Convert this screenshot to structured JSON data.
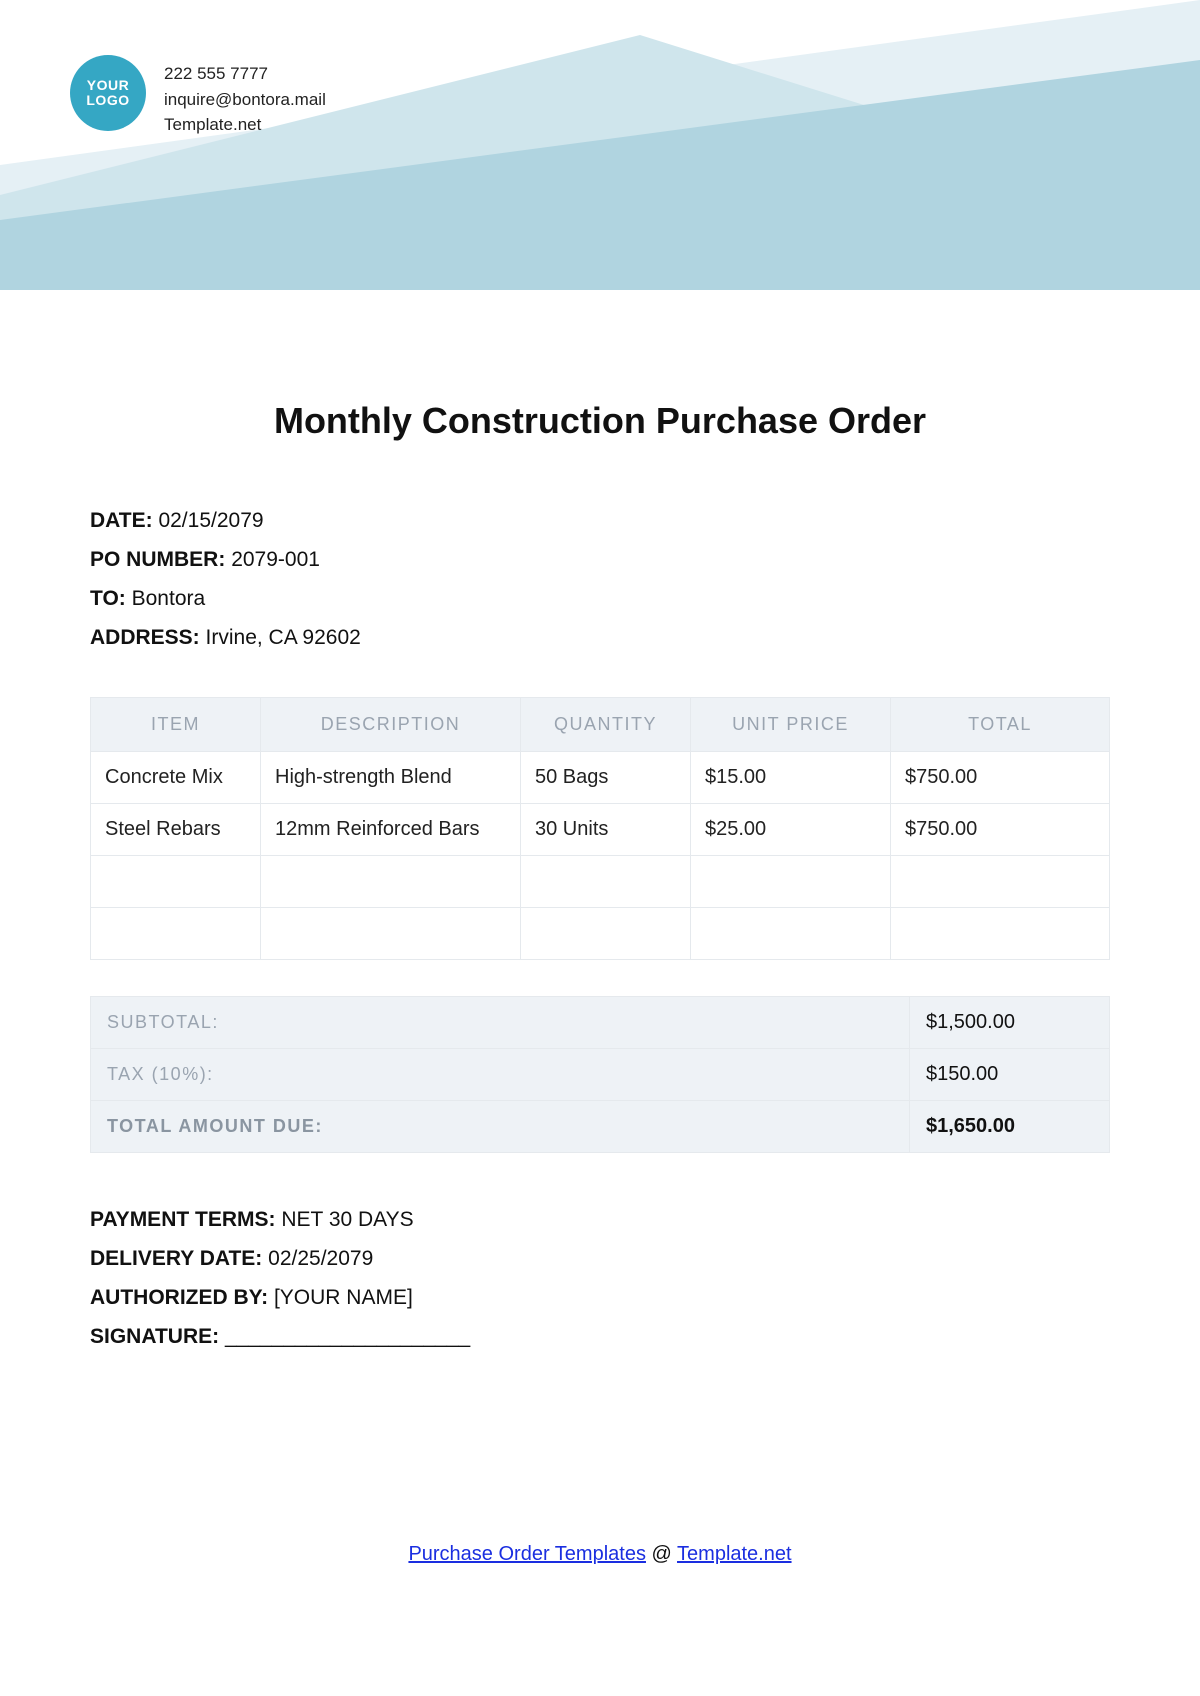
{
  "header": {
    "logo_line1": "YOUR",
    "logo_line2": "LOGO",
    "logo_bg": "#35a7c4",
    "phone": "222 555 7777",
    "email": "inquire@bontora.mail",
    "site": "Template.net",
    "banner_colors": {
      "c1": "#b0d4e0",
      "c2": "#cfe5ec",
      "c3": "#e5f0f5"
    }
  },
  "document": {
    "title": "Monthly Construction Purchase Order",
    "labels": {
      "date": "DATE:",
      "po": "PO NUMBER:",
      "to": "TO:",
      "address": "ADDRESS:"
    },
    "date": "02/15/2079",
    "po_number": "2079-001",
    "to": "Bontora",
    "address": "Irvine, CA 92602"
  },
  "items_table": {
    "columns": [
      "ITEM",
      "DESCRIPTION",
      "QUANTITY",
      "UNIT PRICE",
      "TOTAL"
    ],
    "rows": [
      [
        "Concrete Mix",
        "High-strength Blend",
        "50 Bags",
        "$15.00",
        "$750.00"
      ],
      [
        "Steel Rebars",
        "12mm Reinforced Bars",
        "30 Units",
        "$25.00",
        "$750.00"
      ],
      [
        "",
        "",
        "",
        "",
        ""
      ],
      [
        "",
        "",
        "",
        "",
        ""
      ]
    ],
    "col_widths": [
      "170px",
      "260px",
      "170px",
      "200px",
      "auto"
    ],
    "header_bg": "#eef2f6",
    "header_color": "#9aa4b0",
    "border_color": "#e5e9ed"
  },
  "totals": {
    "rows": [
      {
        "label": "SUBTOTAL:",
        "value": "$1,500.00",
        "final": false
      },
      {
        "label": "TAX (10%):",
        "value": "$150.00",
        "final": false
      },
      {
        "label": "TOTAL AMOUNT DUE:",
        "value": "$1,650.00",
        "final": true
      }
    ]
  },
  "terms": {
    "labels": {
      "payment": "PAYMENT TERMS:",
      "delivery": "DELIVERY DATE:",
      "auth": "AUTHORIZED BY:",
      "sig": "SIGNATURE:"
    },
    "payment": "NET 30 DAYS",
    "delivery": "02/25/2079",
    "auth": "[YOUR NAME]",
    "sig": "_____________________"
  },
  "footer": {
    "link_text": "Purchase Order Templates",
    "sep": " @ ",
    "site_text": "Template.net"
  }
}
